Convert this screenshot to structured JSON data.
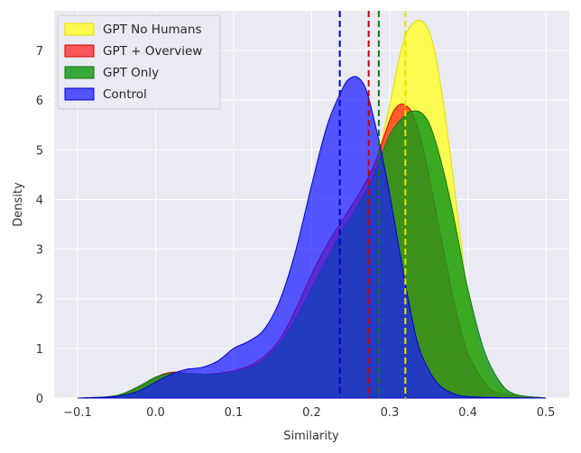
{
  "chart_data": {
    "type": "area",
    "title": "",
    "xlabel": "Similarity",
    "ylabel": "Density",
    "xlim": [
      -0.13,
      0.53
    ],
    "ylim": [
      0,
      7.8
    ],
    "xticks": [
      -0.1,
      0.0,
      0.1,
      0.2,
      0.3,
      0.4,
      0.5
    ],
    "xtick_labels": [
      "−0.1",
      "0.0",
      "0.1",
      "0.2",
      "0.3",
      "0.4",
      "0.5"
    ],
    "yticks": [
      0,
      1,
      2,
      3,
      4,
      5,
      6,
      7
    ],
    "ytick_labels": [
      "0",
      "1",
      "2",
      "3",
      "4",
      "5",
      "6",
      "7"
    ],
    "grid": true,
    "legend_position": "top-left",
    "series": [
      {
        "name": "GPT No Humans",
        "color": "#ffff1a",
        "fill_opacity": 0.75,
        "edge_color": "#e0e000",
        "mean": 0.32,
        "x": [
          -0.1,
          -0.06,
          -0.02,
          0.0,
          0.02,
          0.04,
          0.06,
          0.08,
          0.1,
          0.12,
          0.14,
          0.16,
          0.18,
          0.2,
          0.22,
          0.24,
          0.26,
          0.28,
          0.3,
          0.31,
          0.32,
          0.33,
          0.34,
          0.35,
          0.36,
          0.37,
          0.38,
          0.39,
          0.4,
          0.42,
          0.44,
          0.46,
          0.5
        ],
        "y": [
          0,
          0.02,
          0.15,
          0.35,
          0.48,
          0.5,
          0.48,
          0.48,
          0.55,
          0.62,
          0.8,
          1.1,
          1.6,
          2.2,
          2.8,
          3.3,
          3.8,
          4.6,
          5.9,
          6.7,
          7.3,
          7.55,
          7.6,
          7.4,
          6.8,
          5.8,
          4.6,
          3.3,
          2.1,
          0.7,
          0.18,
          0.03,
          0
        ]
      },
      {
        "name": "GPT + Overview",
        "color": "#ff1a1a",
        "fill_opacity": 0.7,
        "edge_color": "#cc0000",
        "mean": 0.273,
        "x": [
          -0.1,
          -0.06,
          -0.04,
          -0.02,
          0.0,
          0.02,
          0.04,
          0.06,
          0.08,
          0.1,
          0.12,
          0.14,
          0.16,
          0.18,
          0.2,
          0.22,
          0.24,
          0.26,
          0.28,
          0.3,
          0.31,
          0.32,
          0.33,
          0.34,
          0.35,
          0.36,
          0.37,
          0.38,
          0.39,
          0.4,
          0.42,
          0.44,
          0.5
        ],
        "y": [
          0,
          0.02,
          0.08,
          0.22,
          0.42,
          0.52,
          0.5,
          0.48,
          0.5,
          0.55,
          0.65,
          0.85,
          1.2,
          1.8,
          2.5,
          3.1,
          3.6,
          4.1,
          4.7,
          5.6,
          5.88,
          5.9,
          5.7,
          5.2,
          4.5,
          3.7,
          2.9,
          2.1,
          1.45,
          0.9,
          0.35,
          0.1,
          0
        ]
      },
      {
        "name": "GPT Only",
        "color": "#1a9a1a",
        "fill_opacity": 0.85,
        "edge_color": "#117711",
        "mean": 0.286,
        "x": [
          -0.1,
          -0.06,
          -0.04,
          -0.02,
          0.0,
          0.02,
          0.04,
          0.06,
          0.08,
          0.1,
          0.12,
          0.14,
          0.16,
          0.18,
          0.2,
          0.22,
          0.24,
          0.26,
          0.28,
          0.3,
          0.32,
          0.33,
          0.34,
          0.35,
          0.36,
          0.37,
          0.38,
          0.39,
          0.4,
          0.42,
          0.44,
          0.46,
          0.5
        ],
        "y": [
          0,
          0.03,
          0.1,
          0.25,
          0.42,
          0.5,
          0.5,
          0.48,
          0.48,
          0.52,
          0.6,
          0.78,
          1.1,
          1.6,
          2.2,
          2.8,
          3.4,
          3.9,
          4.5,
          5.3,
          5.7,
          5.78,
          5.75,
          5.55,
          5.1,
          4.5,
          3.8,
          3.0,
          2.2,
          1.0,
          0.35,
          0.08,
          0
        ]
      },
      {
        "name": "Control",
        "color": "#1a1aff",
        "fill_opacity": 0.72,
        "edge_color": "#0000cc",
        "mean": 0.236,
        "x": [
          -0.1,
          -0.06,
          -0.04,
          -0.02,
          0.0,
          0.02,
          0.04,
          0.06,
          0.08,
          0.1,
          0.12,
          0.14,
          0.16,
          0.18,
          0.2,
          0.22,
          0.24,
          0.25,
          0.26,
          0.27,
          0.28,
          0.29,
          0.3,
          0.31,
          0.32,
          0.33,
          0.34,
          0.36,
          0.38,
          0.4,
          0.44,
          0.5
        ],
        "y": [
          0,
          0.02,
          0.06,
          0.15,
          0.32,
          0.48,
          0.58,
          0.62,
          0.75,
          1.0,
          1.15,
          1.4,
          2.0,
          3.0,
          4.3,
          5.5,
          6.25,
          6.45,
          6.45,
          6.2,
          5.6,
          4.9,
          4.1,
          3.2,
          2.3,
          1.5,
          0.9,
          0.32,
          0.1,
          0.03,
          0.01,
          0
        ]
      }
    ]
  }
}
